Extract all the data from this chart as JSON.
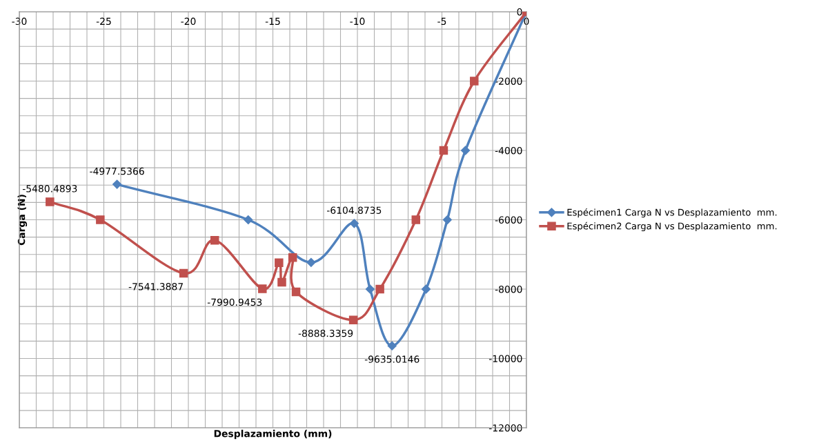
{
  "chart_data": {
    "type": "line",
    "xlabel": "Desplazamiento (mm)",
    "ylabel": "Carga (N)",
    "xlim": [
      -30,
      0
    ],
    "xticks": [
      -30,
      -25,
      -20,
      -15,
      -10,
      -5,
      0
    ],
    "ylim": [
      -12000,
      0
    ],
    "yticks": [
      -12000,
      -10000,
      -8000,
      -6000,
      -4000,
      -2000,
      0
    ],
    "grid": true,
    "legend": "right",
    "series": [
      {
        "name": "Espécimen1 Carga N vs Desplazamiento  mm.",
        "color": "#4f81bd",
        "marker": "diamond",
        "x": [
          0,
          -3.61,
          -4.68,
          -5.94,
          -7.95,
          -9.25,
          -10.19,
          -12.74,
          -16.46,
          -24.22
        ],
        "values": [
          0,
          -4000,
          -6000,
          -8000,
          -9635.0146,
          -8000,
          -6104.8735,
          -7230,
          -6000,
          -4977.5366
        ],
        "value_labels": [
          null,
          null,
          null,
          null,
          "-9635.0146",
          null,
          "-6104.8735",
          null,
          null,
          "-4977.5366"
        ]
      },
      {
        "name": "Espécimen2 Carga N vs Desplazamiento  mm.",
        "color": "#c0504d",
        "marker": "square",
        "x": [
          0,
          -3.09,
          -4.9,
          -6.54,
          -8.67,
          -10.24,
          -13.63,
          -13.83,
          -14.47,
          -14.64,
          -15.62,
          -18.44,
          -20.28,
          -25.21,
          -28.19
        ],
        "values": [
          0,
          -2000,
          -4000,
          -6000,
          -8000,
          -8888.3359,
          -8080,
          -7090,
          -7800,
          -7240,
          -7990.9453,
          -6590,
          -7541.3887,
          -6000,
          -5480.4893
        ],
        "value_labels": [
          null,
          null,
          null,
          null,
          null,
          "-8888.3359",
          null,
          null,
          null,
          null,
          "-7990.9453",
          null,
          "-7541.3887",
          null,
          "-5480.4893"
        ]
      }
    ]
  }
}
